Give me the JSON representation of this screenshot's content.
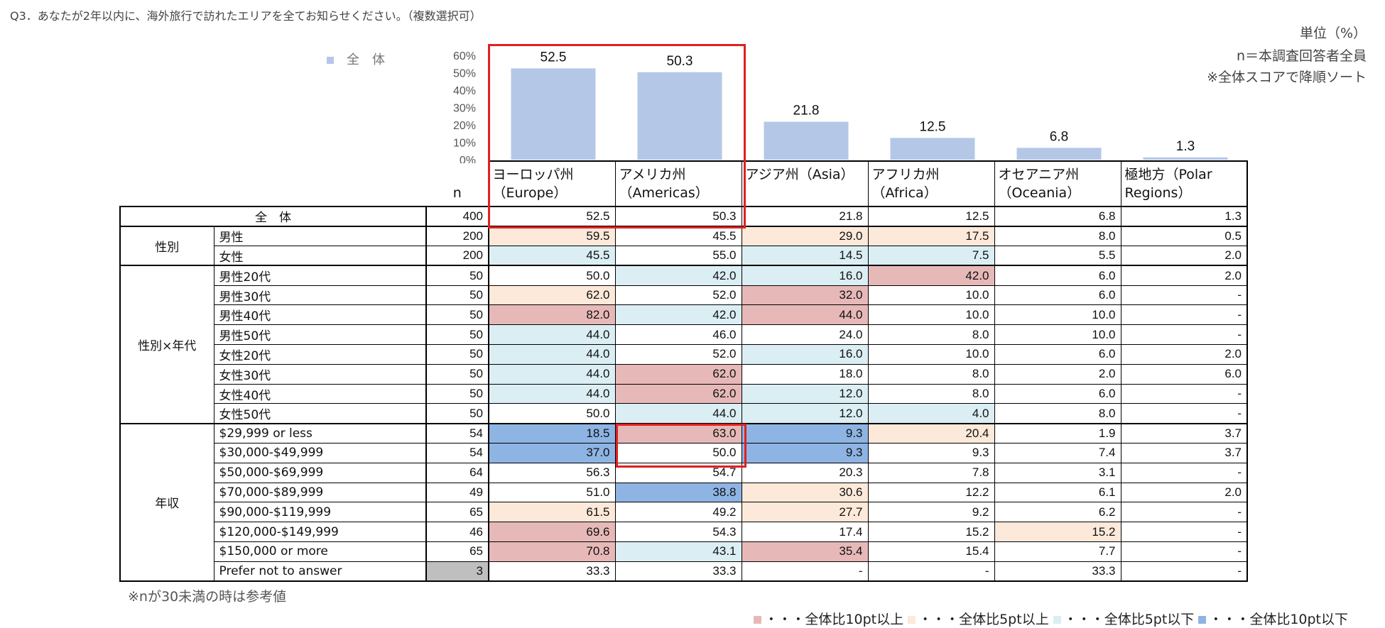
{
  "question": "Q3．あなたが2年以内に、海外旅行で訪れたエリアを全てお知らせください。（複数選択可）",
  "notes": {
    "unit": "単位（%）",
    "base": "n＝本調査回答者全員",
    "sort": "※全体スコアで降順ソート"
  },
  "legend_series": "全　体",
  "chart_data": {
    "type": "bar",
    "categories": [
      "ヨーロッパ州（Europe）",
      "アメリカ州（Americas）",
      "アジア州（Asia）",
      "アフリカ州（Africa）",
      "オセアニア州（Oceania）",
      "極地方（Polar Regions）"
    ],
    "series": [
      {
        "name": "全　体",
        "values": [
          52.5,
          50.3,
          21.8,
          12.5,
          6.8,
          1.3
        ]
      }
    ],
    "yticks": [
      "0%",
      "10%",
      "20%",
      "30%",
      "40%",
      "50%",
      "60%"
    ],
    "ylim": [
      0,
      60
    ],
    "bar_color": "#b4c7e7",
    "data_labels": [
      "52.5",
      "50.3",
      "21.8",
      "12.5",
      "6.8",
      "1.3"
    ]
  },
  "table": {
    "n_header": "n",
    "columns": [
      {
        "line1": "ヨーロッパ州",
        "line2": "（Europe）"
      },
      {
        "line1": "アメリカ州",
        "line2": "（Americas）"
      },
      {
        "line1": "アジア州（Asia）",
        "line2": ""
      },
      {
        "line1": "アフリカ州",
        "line2": "（Africa）"
      },
      {
        "line1": "オセアニア州",
        "line2": "（Oceania）"
      },
      {
        "line1": "極地方（Polar",
        "line2": "Regions）"
      }
    ],
    "total": {
      "label": "全　体",
      "n": "400",
      "values": [
        "52.5",
        "50.3",
        "21.8",
        "12.5",
        "6.8",
        "1.3"
      ]
    },
    "groups": [
      {
        "name": "性別",
        "rows": [
          {
            "label": "男性",
            "n": "200",
            "values": [
              "59.5",
              "45.5",
              "29.0",
              "17.5",
              "8.0",
              "0.5"
            ],
            "colors": [
              "hi5",
              "",
              "hi5",
              "hi5",
              "",
              ""
            ]
          },
          {
            "label": "女性",
            "n": "200",
            "values": [
              "45.5",
              "55.0",
              "14.5",
              "7.5",
              "5.5",
              "2.0"
            ],
            "colors": [
              "lo5",
              "",
              "lo5",
              "lo5",
              "",
              ""
            ]
          }
        ]
      },
      {
        "name": "性別×年代",
        "rows": [
          {
            "label": "男性20代",
            "n": "50",
            "values": [
              "50.0",
              "42.0",
              "16.0",
              "42.0",
              "6.0",
              "2.0"
            ],
            "colors": [
              "",
              "lo5",
              "lo5",
              "hi10",
              "",
              ""
            ]
          },
          {
            "label": "男性30代",
            "n": "50",
            "values": [
              "62.0",
              "52.0",
              "32.0",
              "10.0",
              "6.0",
              "-"
            ],
            "colors": [
              "hi5",
              "",
              "hi10",
              "",
              "",
              ""
            ]
          },
          {
            "label": "男性40代",
            "n": "50",
            "values": [
              "82.0",
              "42.0",
              "44.0",
              "10.0",
              "10.0",
              "-"
            ],
            "colors": [
              "hi10",
              "lo5",
              "hi10",
              "",
              "",
              ""
            ]
          },
          {
            "label": "男性50代",
            "n": "50",
            "values": [
              "44.0",
              "46.0",
              "24.0",
              "8.0",
              "10.0",
              "-"
            ],
            "colors": [
              "lo5",
              "",
              "",
              "",
              "",
              ""
            ]
          },
          {
            "label": "女性20代",
            "n": "50",
            "values": [
              "44.0",
              "52.0",
              "16.0",
              "10.0",
              "6.0",
              "2.0"
            ],
            "colors": [
              "lo5",
              "",
              "lo5",
              "",
              "",
              ""
            ]
          },
          {
            "label": "女性30代",
            "n": "50",
            "values": [
              "44.0",
              "62.0",
              "18.0",
              "8.0",
              "2.0",
              "6.0"
            ],
            "colors": [
              "lo5",
              "hi10",
              "",
              "",
              "",
              ""
            ]
          },
          {
            "label": "女性40代",
            "n": "50",
            "values": [
              "44.0",
              "62.0",
              "12.0",
              "8.0",
              "6.0",
              "-"
            ],
            "colors": [
              "lo5",
              "hi10",
              "lo5",
              "",
              "",
              ""
            ]
          },
          {
            "label": "女性50代",
            "n": "50",
            "values": [
              "50.0",
              "44.0",
              "12.0",
              "4.0",
              "8.0",
              "-"
            ],
            "colors": [
              "",
              "lo5",
              "lo5",
              "lo5",
              "",
              ""
            ]
          }
        ]
      },
      {
        "name": "年収",
        "rows": [
          {
            "label": "$29,999  or  less",
            "n": "54",
            "values": [
              "18.5",
              "63.0",
              "9.3",
              "20.4",
              "1.9",
              "3.7"
            ],
            "colors": [
              "lo10",
              "hi10",
              "lo10",
              "hi5",
              "",
              ""
            ]
          },
          {
            "label": "$30,000-$49,999",
            "n": "54",
            "values": [
              "37.0",
              "50.0",
              "9.3",
              "9.3",
              "7.4",
              "3.7"
            ],
            "colors": [
              "lo10",
              "",
              "lo10",
              "",
              "",
              ""
            ]
          },
          {
            "label": "$50,000-$69,999",
            "n": "64",
            "values": [
              "56.3",
              "54.7",
              "20.3",
              "7.8",
              "3.1",
              "-"
            ],
            "colors": [
              "",
              "",
              "",
              "",
              "",
              ""
            ]
          },
          {
            "label": "$70,000-$89,999",
            "n": "49",
            "values": [
              "51.0",
              "38.8",
              "30.6",
              "12.2",
              "6.1",
              "2.0"
            ],
            "colors": [
              "",
              "lo10",
              "hi5",
              "",
              "",
              ""
            ]
          },
          {
            "label": "$90,000-$119,999",
            "n": "65",
            "values": [
              "61.5",
              "49.2",
              "27.7",
              "9.2",
              "6.2",
              "-"
            ],
            "colors": [
              "hi5",
              "",
              "hi5",
              "",
              "",
              ""
            ]
          },
          {
            "label": "$120,000-$149,999",
            "n": "46",
            "values": [
              "69.6",
              "54.3",
              "17.4",
              "15.2",
              "15.2",
              "-"
            ],
            "colors": [
              "hi10",
              "",
              "",
              "",
              "hi5",
              ""
            ]
          },
          {
            "label": "$150,000  or  more",
            "n": "65",
            "values": [
              "70.8",
              "43.1",
              "35.4",
              "15.4",
              "7.7",
              "-"
            ],
            "colors": [
              "hi10",
              "lo5",
              "hi10",
              "",
              "",
              ""
            ]
          },
          {
            "label": "Prefer  not  to  answer",
            "n": "3",
            "values": [
              "33.3",
              "33.3",
              "-",
              "-",
              "33.3",
              "-"
            ],
            "colors": [
              "",
              "",
              "",
              "",
              "",
              ""
            ],
            "n_color": "gray"
          }
        ]
      }
    ]
  },
  "colors": {
    "hi10": "#e6b9b8",
    "hi5": "#fce9d9",
    "lo5": "#dbeef3",
    "lo10": "#8eb4e3",
    "gray": "#bfbfbf",
    "highlight_border": "#e02020"
  },
  "footnote": "※nが30未満の時は参考値",
  "legend": [
    {
      "key": "hi10",
      "label": "・・・全体比10pt以上"
    },
    {
      "key": "hi5",
      "label": "・・・全体比5pt以上"
    },
    {
      "key": "lo5",
      "label": "・・・全体比5pt以下"
    },
    {
      "key": "lo10",
      "label": "・・・全体比10pt以下"
    }
  ]
}
